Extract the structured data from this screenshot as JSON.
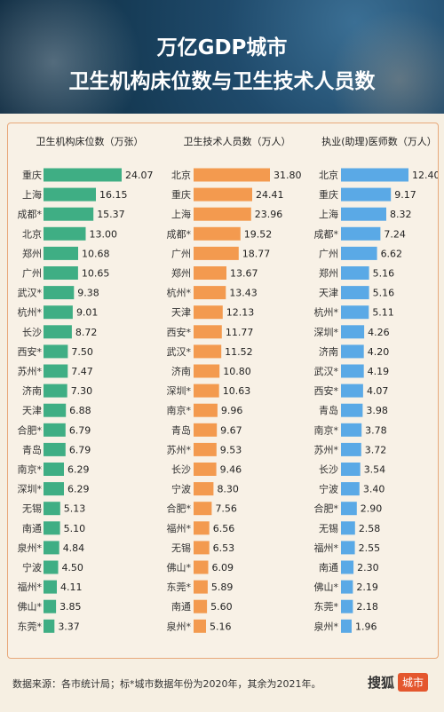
{
  "header": {
    "title_line1": "万亿GDP城市",
    "title_line2": "卫生机构床位数与卫生技术人员数"
  },
  "footer": {
    "source": "数据来源：各市统计局；标*城市数据年份为2020年，其余为2021年。",
    "logo_main": "搜狐",
    "logo_tag": "城市"
  },
  "colors": {
    "green": "#3fae84",
    "orange": "#f39a4f",
    "blue": "#5aa9e6",
    "border": "#e8a87a"
  },
  "chart_data": [
    {
      "type": "bar",
      "title": "卫生机构床位数（万张）",
      "color": "#3fae84",
      "categories": [
        "重庆",
        "上海",
        "成都*",
        "北京",
        "郑州",
        "广州",
        "武汉*",
        "杭州*",
        "长沙",
        "西安*",
        "苏州*",
        "济南",
        "天津",
        "合肥*",
        "青岛",
        "南京*",
        "深圳*",
        "无锡",
        "南通",
        "泉州*",
        "宁波",
        "福州*",
        "佛山*",
        "东莞*"
      ],
      "values": [
        24.07,
        16.15,
        15.37,
        13.0,
        10.68,
        10.65,
        9.38,
        9.01,
        8.72,
        7.5,
        7.47,
        7.3,
        6.88,
        6.79,
        6.79,
        6.29,
        6.29,
        5.13,
        5.1,
        4.84,
        4.5,
        4.11,
        3.85,
        3.37
      ],
      "labels": [
        "24.07",
        "16.15",
        "15.37",
        "13.00",
        "10.68",
        "10.65",
        "9.38",
        "9.01",
        "8.72",
        "7.50",
        "7.47",
        "7.30",
        "6.88",
        "6.79",
        "6.79",
        "6.29",
        "6.29",
        "5.13",
        "5.10",
        "4.84",
        "4.50",
        "4.11",
        "3.85",
        "3.37"
      ]
    },
    {
      "type": "bar",
      "title": "卫生技术人员数（万人）",
      "color": "#f39a4f",
      "categories": [
        "北京",
        "重庆",
        "上海",
        "成都*",
        "广州",
        "郑州",
        "杭州*",
        "天津",
        "西安*",
        "武汉*",
        "济南",
        "深圳*",
        "南京*",
        "青岛",
        "苏州*",
        "长沙",
        "宁波",
        "合肥*",
        "福州*",
        "无锡",
        "佛山*",
        "东莞*",
        "南通",
        "泉州*"
      ],
      "values": [
        31.8,
        24.41,
        23.96,
        19.52,
        18.77,
        13.67,
        13.43,
        12.13,
        11.77,
        11.52,
        10.8,
        10.63,
        9.96,
        9.67,
        9.53,
        9.46,
        8.3,
        7.56,
        6.56,
        6.53,
        6.09,
        5.89,
        5.6,
        5.16
      ],
      "labels": [
        "31.80",
        "24.41",
        "23.96",
        "19.52",
        "18.77",
        "13.67",
        "13.43",
        "12.13",
        "11.77",
        "11.52",
        "10.80",
        "10.63",
        "9.96",
        "9.67",
        "9.53",
        "9.46",
        "8.30",
        "7.56",
        "6.56",
        "6.53",
        "6.09",
        "5.89",
        "5.60",
        "5.16"
      ]
    },
    {
      "type": "bar",
      "title": "执业(助理)医师数（万人）",
      "color": "#5aa9e6",
      "categories": [
        "北京",
        "重庆",
        "上海",
        "成都*",
        "广州",
        "郑州",
        "天津",
        "杭州*",
        "深圳*",
        "济南",
        "武汉*",
        "西安*",
        "青岛",
        "南京*",
        "苏州*",
        "长沙",
        "宁波",
        "合肥*",
        "无锡",
        "福州*",
        "南通",
        "佛山*",
        "东莞*",
        "泉州*"
      ],
      "values": [
        12.4,
        9.17,
        8.32,
        7.24,
        6.62,
        5.16,
        5.16,
        5.11,
        4.26,
        4.2,
        4.19,
        4.07,
        3.98,
        3.78,
        3.72,
        3.54,
        3.4,
        2.9,
        2.58,
        2.55,
        2.3,
        2.19,
        2.18,
        1.96
      ],
      "labels": [
        "12.40",
        "9.17",
        "8.32",
        "7.24",
        "6.62",
        "5.16",
        "5.16",
        "5.11",
        "4.26",
        "4.20",
        "4.19",
        "4.07",
        "3.98",
        "3.78",
        "3.72",
        "3.54",
        "3.40",
        "2.90",
        "2.58",
        "2.55",
        "2.30",
        "2.19",
        "2.18",
        "1.96"
      ]
    }
  ]
}
